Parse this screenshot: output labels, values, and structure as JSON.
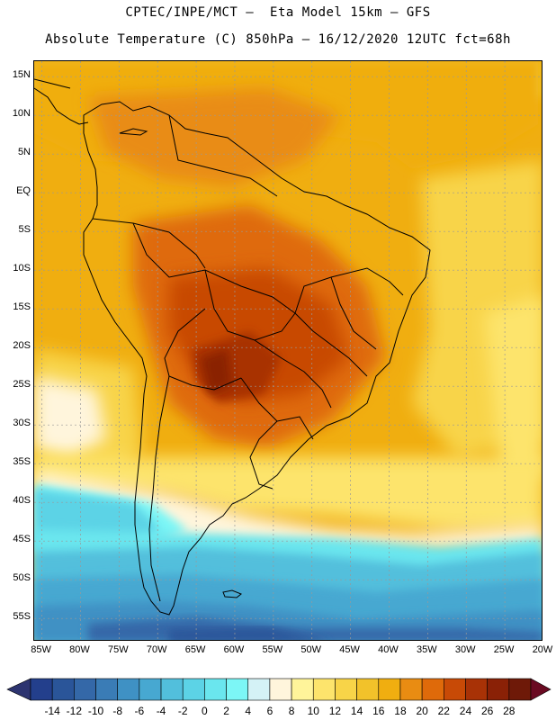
{
  "header": {
    "line1": "CPTEC/INPE/MCT –  Eta Model 15km – GFS",
    "line2": "Absolute Temperature (C) 850hPa – 16/12/2020 12UTC fct=68h"
  },
  "map": {
    "lat_labels": [
      "15N",
      "10N",
      "5N",
      "EQ",
      "5S",
      "10S",
      "15S",
      "20S",
      "25S",
      "30S",
      "35S",
      "40S",
      "45S",
      "50S",
      "55S"
    ],
    "lat_values": [
      15,
      10,
      5,
      0,
      -5,
      -10,
      -15,
      -20,
      -25,
      -30,
      -35,
      -40,
      -45,
      -50,
      -55
    ],
    "lon_labels": [
      "85W",
      "80W",
      "75W",
      "70W",
      "65W",
      "60W",
      "55W",
      "50W",
      "45W",
      "40W",
      "35W",
      "30W",
      "25W",
      "20W"
    ],
    "lon_values": [
      -85,
      -80,
      -75,
      -70,
      -65,
      -60,
      -55,
      -50,
      -45,
      -40,
      -35,
      -30,
      -25,
      -20
    ],
    "extent": {
      "lon_min": -86,
      "lon_max": -20,
      "lat_min": -58,
      "lat_max": 17
    }
  },
  "colorbar": {
    "labels": [
      "-14",
      "-12",
      "-10",
      "-8",
      "-6",
      "-4",
      "-2",
      "0",
      "2",
      "4",
      "6",
      "8",
      "10",
      "12",
      "14",
      "16",
      "18",
      "20",
      "22",
      "24",
      "26",
      "28"
    ],
    "colors": [
      "#233f8c",
      "#2a5599",
      "#3468a8",
      "#3a7cb6",
      "#3f91c4",
      "#47a8d1",
      "#52bfdc",
      "#5cd3e6",
      "#6ae6ee",
      "#7cf6f6",
      "#d4f2f6",
      "#fff5dc",
      "#fff49a",
      "#fde46c",
      "#f8d448",
      "#f2c22a",
      "#f0ae10",
      "#e98c12",
      "#df6a0a",
      "#c84a06",
      "#a83206",
      "#8a2106",
      "#6e1908"
    ],
    "under_color": "#2d3470",
    "over_color": "#6a0a22"
  }
}
